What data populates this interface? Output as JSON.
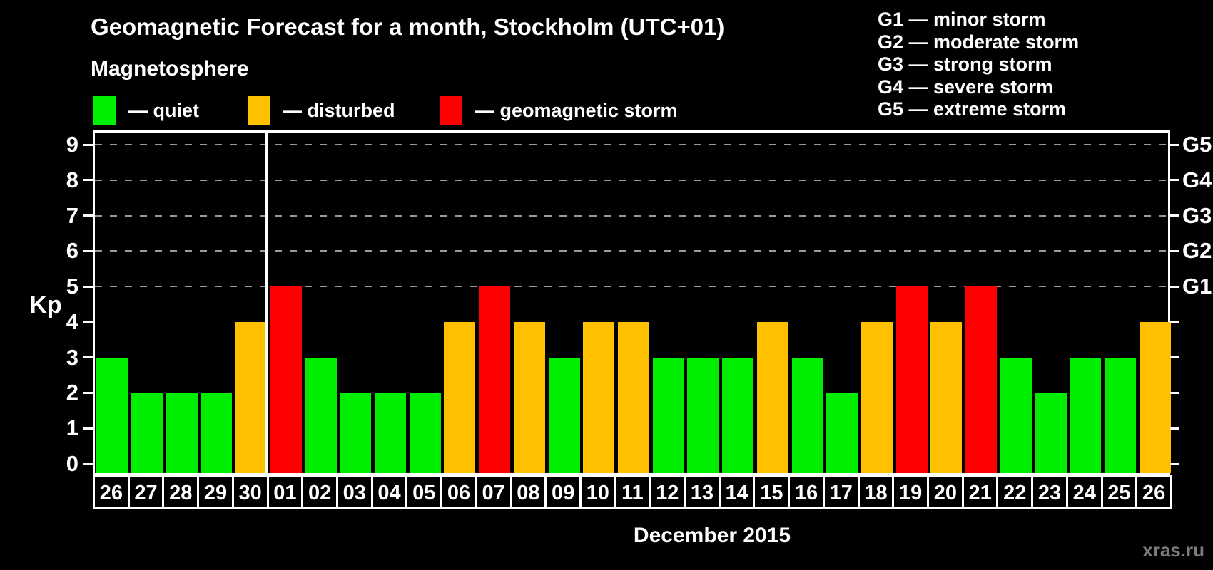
{
  "title": "Geomagnetic Forecast for a month, Stockholm (UTC+01)",
  "subtitle": "Magnetosphere",
  "watermark": "xras.ru",
  "status_colors": {
    "quiet": "#00ee00",
    "disturbed": "#ffc000",
    "storm": "#ff0000"
  },
  "legend": [
    {
      "status": "quiet",
      "label": "— quiet"
    },
    {
      "status": "disturbed",
      "label": "— disturbed"
    },
    {
      "status": "storm",
      "label": "— geomagnetic storm"
    }
  ],
  "g_scale_legend": [
    "G1 — minor storm",
    "G2 — moderate storm",
    "G3 — strong storm",
    "G4 — severe storm",
    "G5 — extreme storm"
  ],
  "chart_data": {
    "type": "bar",
    "title": "Geomagnetic Forecast for a month, Stockholm (UTC+01)",
    "ylabel": "Kp",
    "xlabel": "December 2015",
    "ylim": [
      0,
      9
    ],
    "yticks": [
      0,
      1,
      2,
      3,
      4,
      5,
      6,
      7,
      8,
      9
    ],
    "gridlines_at": [
      5,
      6,
      7,
      8,
      9
    ],
    "right_axis": [
      {
        "kp": 5,
        "label": "G1"
      },
      {
        "kp": 6,
        "label": "G2"
      },
      {
        "kp": 7,
        "label": "G3"
      },
      {
        "kp": 8,
        "label": "G4"
      },
      {
        "kp": 9,
        "label": "G5"
      }
    ],
    "month_separator_after_index": 4,
    "bars": [
      {
        "day": "26",
        "kp": 3,
        "status": "quiet"
      },
      {
        "day": "27",
        "kp": 2,
        "status": "quiet"
      },
      {
        "day": "28",
        "kp": 2,
        "status": "quiet"
      },
      {
        "day": "29",
        "kp": 2,
        "status": "quiet"
      },
      {
        "day": "30",
        "kp": 4,
        "status": "disturbed"
      },
      {
        "day": "01",
        "kp": 5,
        "status": "storm"
      },
      {
        "day": "02",
        "kp": 3,
        "status": "quiet"
      },
      {
        "day": "03",
        "kp": 2,
        "status": "quiet"
      },
      {
        "day": "04",
        "kp": 2,
        "status": "quiet"
      },
      {
        "day": "05",
        "kp": 2,
        "status": "quiet"
      },
      {
        "day": "06",
        "kp": 4,
        "status": "disturbed"
      },
      {
        "day": "07",
        "kp": 5,
        "status": "storm"
      },
      {
        "day": "08",
        "kp": 4,
        "status": "disturbed"
      },
      {
        "day": "09",
        "kp": 3,
        "status": "quiet"
      },
      {
        "day": "10",
        "kp": 4,
        "status": "disturbed"
      },
      {
        "day": "11",
        "kp": 4,
        "status": "disturbed"
      },
      {
        "day": "12",
        "kp": 3,
        "status": "quiet"
      },
      {
        "day": "13",
        "kp": 3,
        "status": "quiet"
      },
      {
        "day": "14",
        "kp": 3,
        "status": "quiet"
      },
      {
        "day": "15",
        "kp": 4,
        "status": "disturbed"
      },
      {
        "day": "16",
        "kp": 3,
        "status": "quiet"
      },
      {
        "day": "17",
        "kp": 2,
        "status": "quiet"
      },
      {
        "day": "18",
        "kp": 4,
        "status": "disturbed"
      },
      {
        "day": "19",
        "kp": 5,
        "status": "storm"
      },
      {
        "day": "20",
        "kp": 4,
        "status": "disturbed"
      },
      {
        "day": "21",
        "kp": 5,
        "status": "storm"
      },
      {
        "day": "22",
        "kp": 3,
        "status": "quiet"
      },
      {
        "day": "23",
        "kp": 2,
        "status": "quiet"
      },
      {
        "day": "24",
        "kp": 3,
        "status": "quiet"
      },
      {
        "day": "25",
        "kp": 3,
        "status": "quiet"
      },
      {
        "day": "26",
        "kp": 4,
        "status": "disturbed"
      }
    ]
  }
}
